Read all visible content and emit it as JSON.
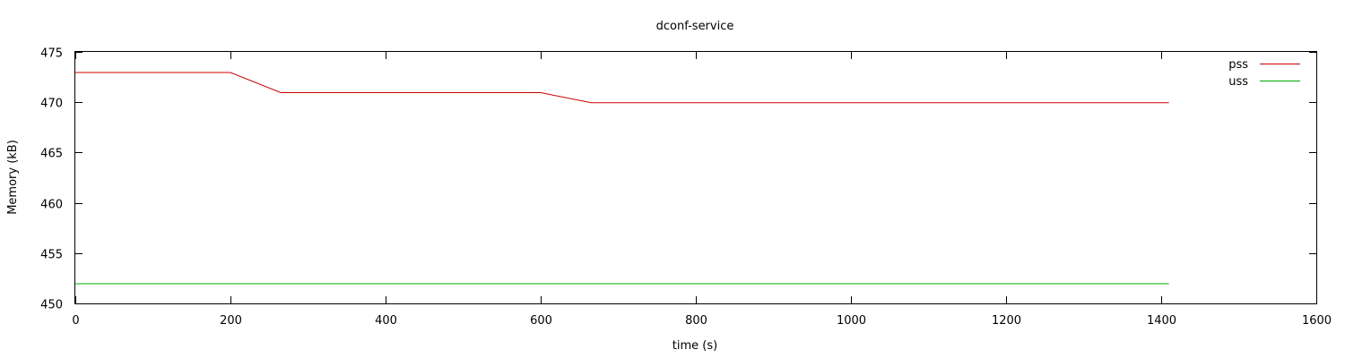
{
  "chart_data": {
    "type": "line",
    "title": "dconf-service",
    "xlabel": "time (s)",
    "ylabel": "Memory (kB)",
    "xlim": [
      0,
      1600
    ],
    "ylim": [
      450,
      475
    ],
    "xticks": [
      0,
      200,
      400,
      600,
      800,
      1000,
      1200,
      1400,
      1600
    ],
    "yticks": [
      450,
      455,
      460,
      465,
      470,
      475
    ],
    "grid": false,
    "legend_position": "top-right",
    "series": [
      {
        "name": "pss",
        "color": "#cc0000",
        "x": [
          0,
          200,
          265,
          600,
          665,
          1410
        ],
        "y": [
          473,
          473,
          471,
          471,
          470,
          470
        ]
      },
      {
        "name": "uss",
        "color": "#00aa00",
        "x": [
          0,
          1410
        ],
        "y": [
          452,
          452
        ]
      }
    ]
  }
}
